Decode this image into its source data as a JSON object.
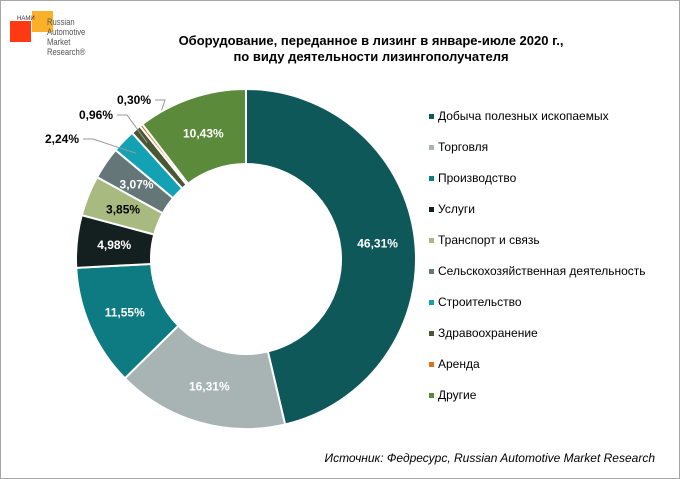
{
  "logo": {
    "nami": "НАМИ",
    "text": [
      "Russian",
      "Automotive",
      "Market",
      "Research®"
    ]
  },
  "title_lines": [
    "Оборудование, переданное в лизинг в январе-июле 2020 г.,",
    "по виду деятельности лизингополучателя"
  ],
  "source": "Источник: Федресурс, Russian Automotive Market Research",
  "chart_data": {
    "type": "pie",
    "donut": true,
    "title": "Оборудование, переданное в лизинг в январе-июле 2020 г., по виду деятельности лизингополучателя",
    "legend_position": "right",
    "categories": [
      "Добыча полезных ископаемых",
      "Торговля",
      "Производство",
      "Услуги",
      "Транспорт и связь",
      "Сельскохозяйственная деятельность",
      "Строительство",
      "Здравоохранение",
      "Аренда",
      "Другие"
    ],
    "values": [
      46.31,
      16.31,
      11.55,
      4.98,
      3.85,
      3.07,
      2.24,
      0.96,
      0.3,
      10.43
    ],
    "labels": [
      "46,31%",
      "16,31%",
      "11,55%",
      "4,98%",
      "3,85%",
      "3,07%",
      "2,24%",
      "0,96%",
      "0,30%",
      "10,43%"
    ],
    "colors": [
      "#0e5859",
      "#a8b3b3",
      "#0e7b82",
      "#142020",
      "#a8ba80",
      "#647677",
      "#12a2b3",
      "#4a5733",
      "#e26d1a",
      "#5b8a3a"
    ]
  }
}
